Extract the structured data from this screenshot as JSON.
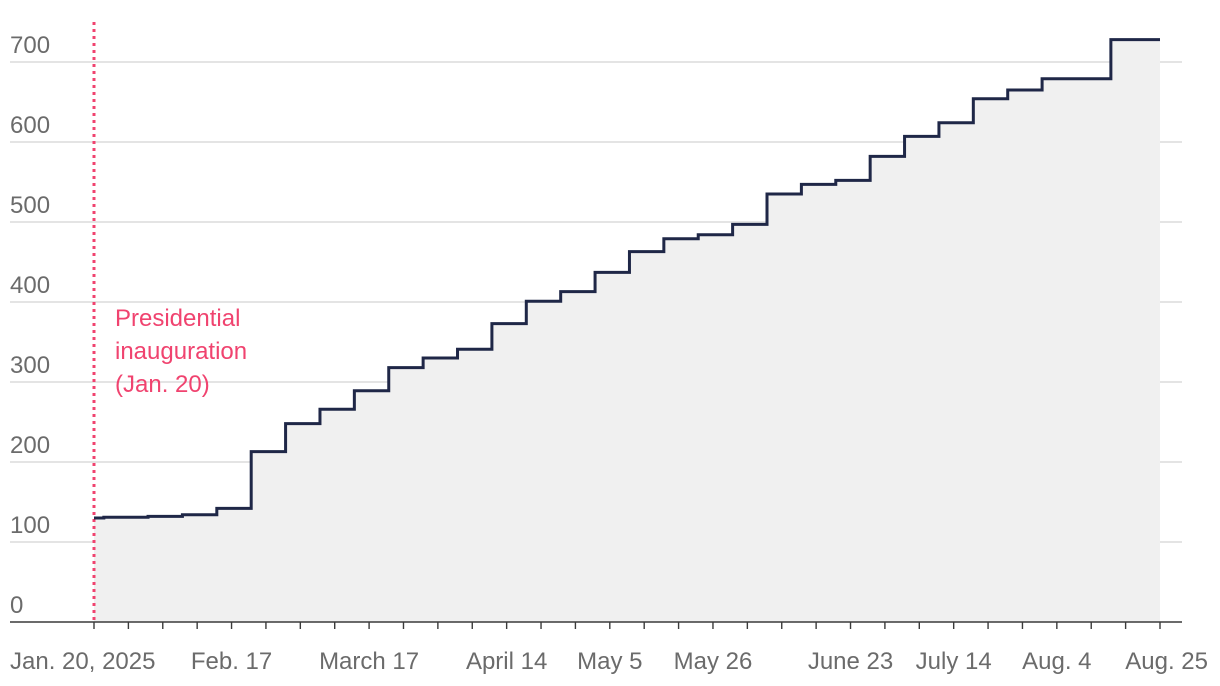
{
  "chart_data": {
    "type": "line",
    "step": "post",
    "fill": "area",
    "title": "",
    "xlabel": "",
    "ylabel": "",
    "ylim": [
      0,
      730
    ],
    "yticks": [
      0,
      100,
      200,
      300,
      400,
      500,
      600,
      700
    ],
    "grid": "horizontal",
    "x_start": "2025-01-20",
    "x_end": "2025-08-25",
    "xtick_dates": [
      "2025-01-20",
      "2025-02-17",
      "2025-03-17",
      "2025-04-14",
      "2025-05-05",
      "2025-05-26",
      "2025-06-23",
      "2025-07-14",
      "2025-08-04",
      "2025-08-25"
    ],
    "xtick_labels": [
      "Jan. 20, 2025",
      "Feb. 17",
      "March 17",
      "April 14",
      "May 5",
      "May 26",
      "June 23",
      "July 14",
      "Aug. 4",
      "Aug. 25"
    ],
    "minor_tick_dates": [
      "2025-01-27",
      "2025-02-03",
      "2025-02-10",
      "2025-02-24",
      "2025-03-03",
      "2025-03-10",
      "2025-03-24",
      "2025-03-31",
      "2025-04-07",
      "2025-04-21",
      "2025-04-28",
      "2025-05-12",
      "2025-05-19",
      "2025-06-02",
      "2025-06-09",
      "2025-06-16",
      "2025-06-30",
      "2025-07-07",
      "2025-07-21",
      "2025-07-28",
      "2025-08-11",
      "2025-08-18"
    ],
    "series": [
      {
        "line_color": "#1f2747",
        "fill_color": "#f0f0f0",
        "points": [
          {
            "date": "2025-01-20",
            "value": 130
          },
          {
            "date": "2025-01-22",
            "value": 131
          },
          {
            "date": "2025-01-31",
            "value": 132
          },
          {
            "date": "2025-02-07",
            "value": 134
          },
          {
            "date": "2025-02-14",
            "value": 142
          },
          {
            "date": "2025-02-21",
            "value": 213
          },
          {
            "date": "2025-02-28",
            "value": 248
          },
          {
            "date": "2025-03-07",
            "value": 266
          },
          {
            "date": "2025-03-14",
            "value": 289
          },
          {
            "date": "2025-03-21",
            "value": 318
          },
          {
            "date": "2025-03-28",
            "value": 330
          },
          {
            "date": "2025-04-04",
            "value": 341
          },
          {
            "date": "2025-04-11",
            "value": 373
          },
          {
            "date": "2025-04-18",
            "value": 401
          },
          {
            "date": "2025-04-25",
            "value": 413
          },
          {
            "date": "2025-05-02",
            "value": 437
          },
          {
            "date": "2025-05-09",
            "value": 463
          },
          {
            "date": "2025-05-16",
            "value": 479
          },
          {
            "date": "2025-05-23",
            "value": 484
          },
          {
            "date": "2025-05-30",
            "value": 497
          },
          {
            "date": "2025-06-06",
            "value": 535
          },
          {
            "date": "2025-06-13",
            "value": 547
          },
          {
            "date": "2025-06-20",
            "value": 552
          },
          {
            "date": "2025-06-27",
            "value": 582
          },
          {
            "date": "2025-07-04",
            "value": 607
          },
          {
            "date": "2025-07-11",
            "value": 624
          },
          {
            "date": "2025-07-18",
            "value": 654
          },
          {
            "date": "2025-07-25",
            "value": 665
          },
          {
            "date": "2025-08-01",
            "value": 679
          },
          {
            "date": "2025-08-15",
            "value": 728
          },
          {
            "date": "2025-08-25",
            "value": 728
          }
        ]
      }
    ],
    "annotations": [
      {
        "date": "2025-01-20",
        "style": "dotted-vertical-line",
        "color": "#f0436f",
        "lines": [
          "Presidential",
          "inauguration",
          "(Jan. 20)"
        ]
      }
    ]
  }
}
